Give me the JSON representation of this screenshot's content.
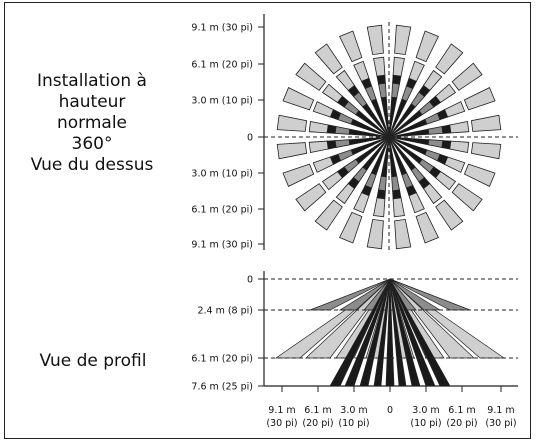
{
  "top_view": {
    "title_lines": [
      "Installation à",
      "hauteur",
      "normale",
      "360°",
      "Vue du dessus"
    ],
    "axis_ticks": [
      "9.1 m (30 pi)",
      "6.1 m (20 pi)",
      "3.0 m (10 pi)",
      "0",
      "3.0 m (10 pi)",
      "6.1 m (20 pi)",
      "9.1 m (30 pi)"
    ],
    "fan_beams": 24
  },
  "profile_view": {
    "title": "Vue de profil",
    "depth_ticks": [
      "0",
      "2.4 m (8 pi)",
      "6.1 m (20 pi)",
      "7.6 m (25 pi)"
    ],
    "horizontal_ticks": [
      {
        "value": "9.1 m",
        "unit": "(30 pi)"
      },
      {
        "value": "6.1 m",
        "unit": "(20 pi)"
      },
      {
        "value": "3.0 m",
        "unit": "(10 pi)"
      },
      {
        "value": "0",
        "unit": ""
      },
      {
        "value": "3.0 m",
        "unit": "(10 pi)"
      },
      {
        "value": "6.1 m",
        "unit": "(20 pi)"
      },
      {
        "value": "9.1 m",
        "unit": "(30 pi)"
      }
    ]
  },
  "colors": {
    "dark": "#1a1a1a",
    "mid": "#8c8c8c",
    "light": "#cfcfcf",
    "outline": "#222222"
  }
}
